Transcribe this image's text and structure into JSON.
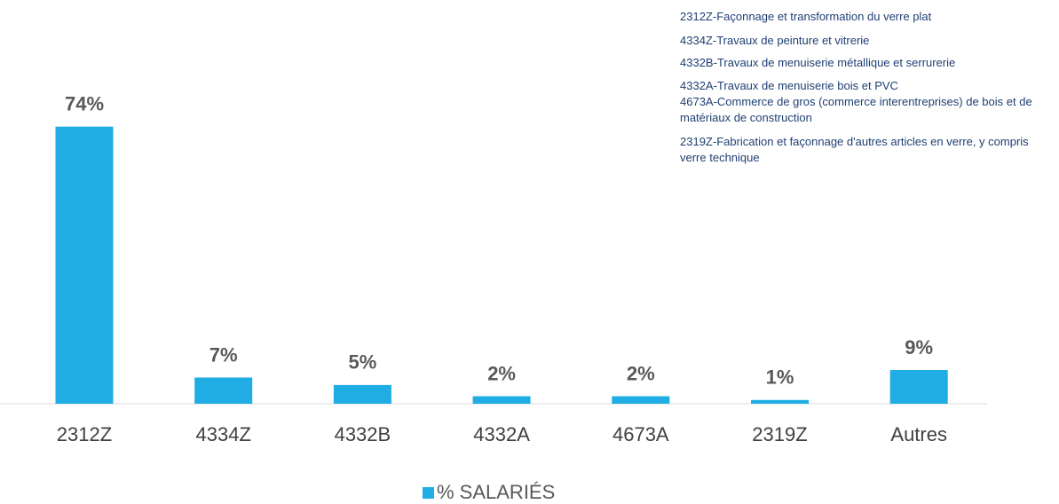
{
  "chart_data": {
    "type": "bar",
    "categories": [
      "2312Z",
      "4334Z",
      "4332B",
      "4332A",
      "4673A",
      "2319Z",
      "Autres"
    ],
    "series": [
      {
        "name": "% SALARIÉS",
        "color": "#1fade4",
        "values": [
          74,
          7,
          5,
          2,
          2,
          1,
          9
        ],
        "value_labels": [
          "74%",
          "7%",
          "5%",
          "2%",
          "2%",
          "1%",
          "9%"
        ]
      }
    ],
    "annotations": [
      "2312Z-Façonnage et transformation du verre plat",
      "4334Z-Travaux de peinture et vitrerie",
      "4332B-Travaux de menuiserie métallique et serrurerie",
      "4332A-Travaux de menuiserie bois et PVC",
      "4673A-Commerce de gros (commerce interentreprises) de bois et de matériaux de construction",
      "2319Z-Fabrication et façonnage d'autres articles en verre, y compris verre technique"
    ]
  }
}
